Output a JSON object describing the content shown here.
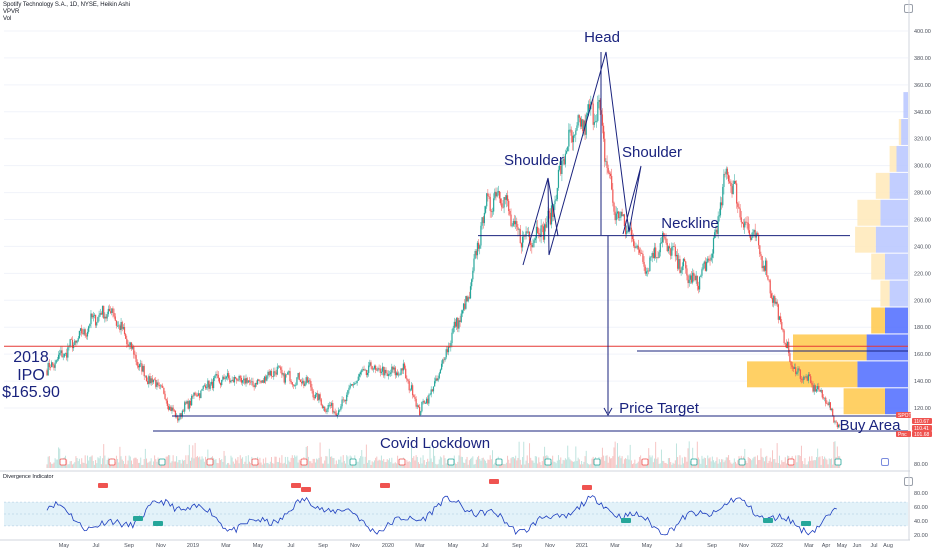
{
  "header": {
    "symbol_line": "Spotify Technology S.A., 1D, NYSE, Heikin Ashi",
    "indicator_1": "VPVR",
    "indicator_2": "Vol"
  },
  "sub_indicator_label": "Divergence Indicator",
  "colors": {
    "bull": "#26a69a",
    "bear": "#ef5350",
    "annotation": "#1a237e",
    "ipo_line": "#e53935",
    "vp_up": "#4d6bff",
    "vp_down": "#ffc84a",
    "vp_up_va": "#b7c6ff",
    "vp_down_va": "#ffe9b8",
    "osc_line": "#1e3fbf",
    "osc_band": "#d7ecf7"
  },
  "annotations": {
    "head": "Head",
    "left_shoulder": "Shoulder",
    "right_shoulder": "Shoulder",
    "neckline": "Neckline",
    "price_target": "Price Target",
    "covid": "Covid Lockdown",
    "buy_area": "Buy Area",
    "ipo_year": "2018",
    "ipo_word": "IPO",
    "ipo_price": "$165.90"
  },
  "price_badges": [
    {
      "text": "SPOT",
      "color": "#ef5350"
    },
    {
      "text": "110.67",
      "color": "#ef5350"
    },
    {
      "text": "110.41",
      "color": "#ef5350"
    },
    {
      "text": "Pnc",
      "color": "#ef5350"
    },
    {
      "text": "101.68",
      "color": "#ef5350"
    }
  ],
  "chart_data": {
    "type": "candlestick",
    "style": "Heikin Ashi",
    "timeframe": "1D",
    "y_ticks": [
      400,
      380,
      360,
      340,
      320,
      300,
      280,
      260,
      240,
      220,
      200,
      180,
      160,
      140,
      120
    ],
    "ylim": [
      108,
      408
    ],
    "x_ticks": [
      "May",
      "Jul",
      "Sep",
      "Nov",
      "2019",
      "Mar",
      "May",
      "Jul",
      "Sep",
      "Nov",
      "2020",
      "Mar",
      "May",
      "Jul",
      "Sep",
      "Nov",
      "2021",
      "Mar",
      "May",
      "Jul",
      "Sep",
      "Nov",
      "2022",
      "Mar",
      "May",
      "Jul",
      "Sep",
      "Nov",
      "Apr",
      "Jun",
      "Aug"
    ],
    "price_path": [
      {
        "date": "2018-04",
        "price": 148
      },
      {
        "date": "2018-05",
        "price": 160
      },
      {
        "date": "2018-06",
        "price": 172
      },
      {
        "date": "2018-07",
        "price": 188
      },
      {
        "date": "2018-08",
        "price": 192
      },
      {
        "date": "2018-09",
        "price": 168
      },
      {
        "date": "2018-10",
        "price": 145
      },
      {
        "date": "2018-11",
        "price": 135
      },
      {
        "date": "2018-12",
        "price": 112
      },
      {
        "date": "2019-01",
        "price": 128
      },
      {
        "date": "2019-02",
        "price": 138
      },
      {
        "date": "2019-03",
        "price": 142
      },
      {
        "date": "2019-04",
        "price": 140
      },
      {
        "date": "2019-05",
        "price": 138
      },
      {
        "date": "2019-06",
        "price": 148
      },
      {
        "date": "2019-07",
        "price": 142
      },
      {
        "date": "2019-08",
        "price": 140
      },
      {
        "date": "2019-09",
        "price": 122
      },
      {
        "date": "2019-10",
        "price": 118
      },
      {
        "date": "2019-11",
        "price": 140
      },
      {
        "date": "2019-12",
        "price": 150
      },
      {
        "date": "2020-01",
        "price": 145
      },
      {
        "date": "2020-02",
        "price": 148
      },
      {
        "date": "2020-03",
        "price": 118
      },
      {
        "date": "2020-04",
        "price": 138
      },
      {
        "date": "2020-05",
        "price": 175
      },
      {
        "date": "2020-06",
        "price": 200
      },
      {
        "date": "2020-07",
        "price": 268
      },
      {
        "date": "2020-08",
        "price": 282
      },
      {
        "date": "2020-09",
        "price": 248
      },
      {
        "date": "2020-10",
        "price": 248
      },
      {
        "date": "2020-11",
        "price": 258
      },
      {
        "date": "2020-12",
        "price": 312
      },
      {
        "date": "2021-01",
        "price": 330
      },
      {
        "date": "2021-02",
        "price": 345
      },
      {
        "date": "2021-03",
        "price": 268
      },
      {
        "date": "2021-04",
        "price": 250
      },
      {
        "date": "2021-05",
        "price": 225
      },
      {
        "date": "2021-06",
        "price": 245
      },
      {
        "date": "2021-07",
        "price": 228
      },
      {
        "date": "2021-08",
        "price": 212
      },
      {
        "date": "2021-09",
        "price": 232
      },
      {
        "date": "2021-10",
        "price": 298
      },
      {
        "date": "2021-11",
        "price": 258
      },
      {
        "date": "2021-12",
        "price": 238
      },
      {
        "date": "2022-01",
        "price": 195
      },
      {
        "date": "2022-02",
        "price": 150
      },
      {
        "date": "2022-03",
        "price": 140
      },
      {
        "date": "2022-04",
        "price": 128
      },
      {
        "date": "2022-05",
        "price": 102
      }
    ],
    "levels": {
      "ipo": 165.9,
      "neckline": 248,
      "covid_low": 108
    },
    "volume_profile": [
      {
        "price": 345,
        "up": 2,
        "down": 0
      },
      {
        "price": 325,
        "up": 3,
        "down": 1
      },
      {
        "price": 305,
        "up": 5,
        "down": 3
      },
      {
        "price": 285,
        "up": 8,
        "down": 6
      },
      {
        "price": 265,
        "up": 12,
        "down": 10
      },
      {
        "price": 245,
        "up": 14,
        "down": 9
      },
      {
        "price": 225,
        "up": 10,
        "down": 6
      },
      {
        "price": 205,
        "up": 8,
        "down": 4
      },
      {
        "price": 185,
        "up": 10,
        "down": 6
      },
      {
        "price": 165,
        "up": 18,
        "down": 32
      },
      {
        "price": 145,
        "up": 22,
        "down": 48
      },
      {
        "price": 125,
        "up": 10,
        "down": 18
      }
    ],
    "oscillator": {
      "label": "Divergence Indicator",
      "y_ticks": [
        80,
        60,
        40,
        20
      ],
      "band": [
        33,
        67
      ],
      "ylim": [
        10,
        90
      ]
    },
    "volume_axis_tick": 80
  }
}
